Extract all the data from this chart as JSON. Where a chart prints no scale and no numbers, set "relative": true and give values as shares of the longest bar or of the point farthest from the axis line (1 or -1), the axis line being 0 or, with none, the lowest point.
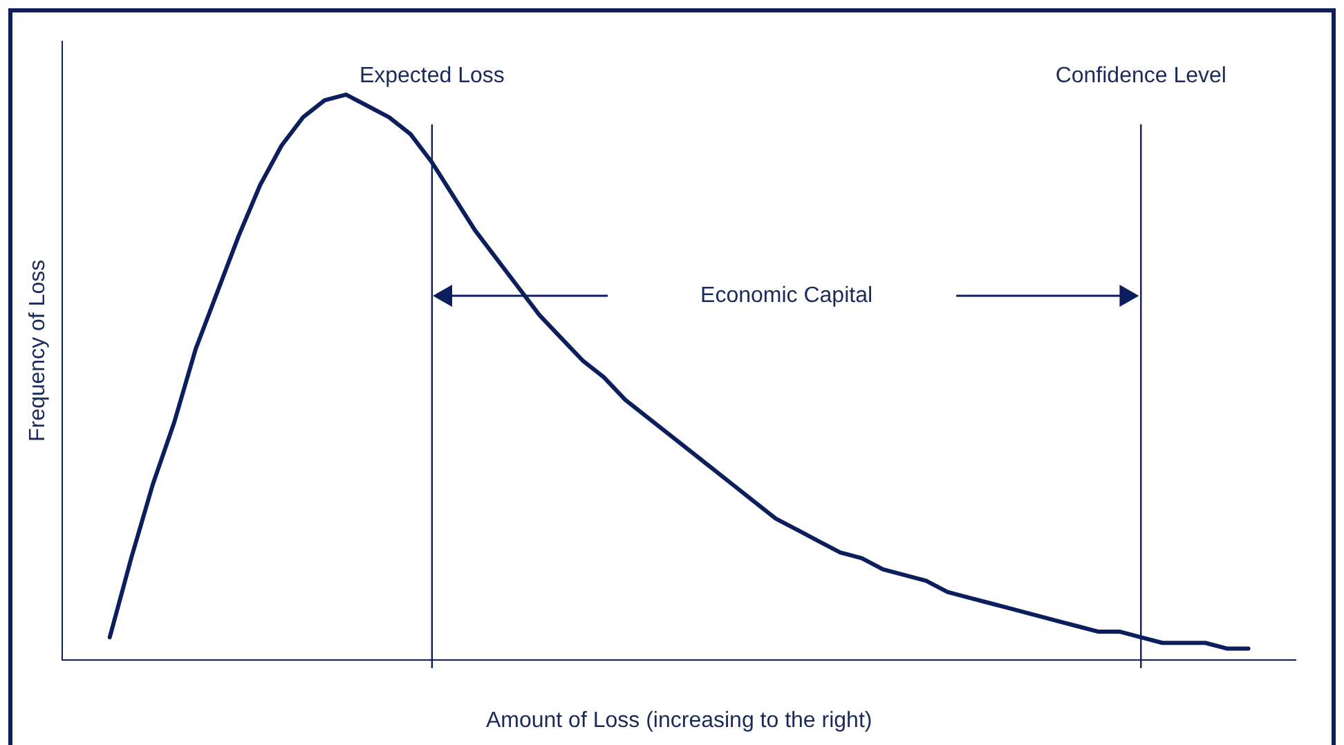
{
  "chart_data": {
    "type": "line",
    "relative": true,
    "xlabel": "Amount of Loss (increasing to the right)",
    "ylabel": "Frequency of Loss",
    "grid": false,
    "legend": false,
    "marker": "none",
    "line_style": "solid",
    "categories": [
      null,
      null,
      null,
      null,
      null,
      null,
      null,
      null,
      null,
      null,
      null,
      null,
      null,
      null,
      null,
      null,
      null,
      null,
      null,
      null,
      null,
      null,
      null,
      null,
      null,
      null,
      null,
      null,
      null,
      null,
      null,
      null,
      null,
      null,
      null,
      null,
      null,
      null,
      null,
      null,
      null,
      null,
      null,
      null,
      null,
      null,
      null,
      null,
      null,
      null,
      null,
      null,
      null,
      null
    ],
    "series": [
      {
        "color": "#0c1f5c",
        "values": [
          0.04,
          0.18,
          0.31,
          0.42,
          0.55,
          0.65,
          0.75,
          0.84,
          0.91,
          0.96,
          0.99,
          1,
          0.98,
          0.96,
          0.93,
          0.88,
          0.82,
          0.76,
          0.71,
          0.66,
          0.61,
          0.57,
          0.53,
          0.5,
          0.46,
          0.43,
          0.4,
          0.37,
          0.34,
          0.31,
          0.28,
          0.25,
          0.23,
          0.21,
          0.19,
          0.18,
          0.16,
          0.15,
          0.14,
          0.12,
          0.11,
          0.1,
          0.09,
          0.08,
          0.07,
          0.06,
          0.05,
          0.05,
          0.04,
          0.03,
          0.03,
          0.03,
          0.02,
          0.02
        ]
      }
    ],
    "annotations": [
      "Expected Loss",
      "Confidence Level",
      "Economic Capital"
    ]
  }
}
